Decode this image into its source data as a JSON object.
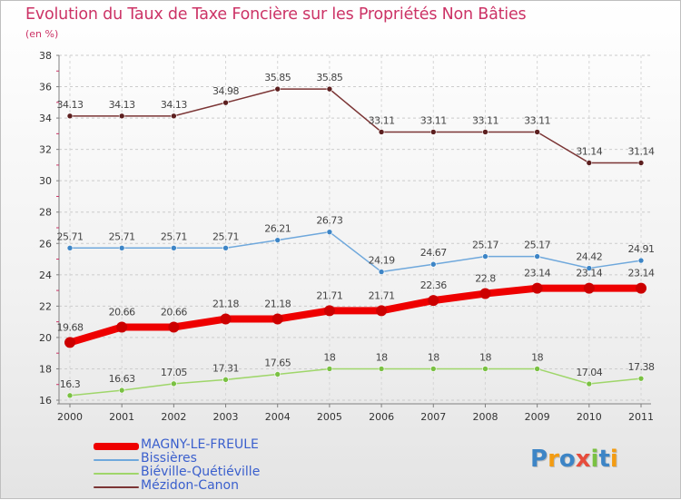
{
  "title": "Evolution du Taux de Taxe Foncière sur les Propriétés Non Bâties",
  "subtitle": "(en %)",
  "logo_text": "Proxiti",
  "chart_data": {
    "type": "line",
    "title": "Evolution du Taux de Taxe Foncière sur les Propriétés Non Bâties",
    "ylabel": "(en %)",
    "xlabel": "",
    "ylim": [
      16,
      38
    ],
    "yticks": [
      16,
      18,
      20,
      22,
      24,
      26,
      28,
      30,
      32,
      34,
      36,
      38
    ],
    "grid": true,
    "legend_position": "bottom-left",
    "x": [
      "2000",
      "2001",
      "2002",
      "2003",
      "2004",
      "2005",
      "2006",
      "2007",
      "2008",
      "2009",
      "2010",
      "2011"
    ],
    "series": [
      {
        "name": "MAGNY-LE-FREULE",
        "color": "#ee0000",
        "point_color": "#cc0000",
        "width": 8,
        "values": [
          19.68,
          20.66,
          20.66,
          21.18,
          21.18,
          21.71,
          21.71,
          22.36,
          22.8,
          23.14,
          23.14,
          23.14
        ],
        "labels": [
          "19.68",
          "20.66",
          "20.66",
          "21.18",
          "21.18",
          "21.71",
          "21.71",
          "22.36",
          "22.8",
          "23.14",
          "23.14",
          "23.14"
        ]
      },
      {
        "name": "Bissières",
        "color": "#6fa8dc",
        "point_color": "#3d85c6",
        "width": 1.5,
        "values": [
          25.71,
          25.71,
          25.71,
          25.71,
          26.21,
          26.73,
          24.19,
          24.67,
          25.17,
          25.17,
          24.42,
          24.91
        ],
        "labels": [
          "25.71",
          "25.71",
          "25.71",
          "25.71",
          "26.21",
          "26.73",
          "24.19",
          "24.67",
          "25.17",
          "25.17",
          "24.42",
          "24.91"
        ]
      },
      {
        "name": "Biéville-Quétiéville",
        "color": "#9fd66a",
        "point_color": "#7ac143",
        "width": 1.5,
        "values": [
          16.3,
          16.63,
          17.05,
          17.31,
          17.65,
          18,
          18,
          18,
          18,
          18,
          17.04,
          17.38
        ],
        "labels": [
          "16.3",
          "16.63",
          "17.05",
          "17.31",
          "17.65",
          "18",
          "18",
          "18",
          "18",
          "18",
          "17.04",
          "17.38"
        ]
      },
      {
        "name": "Mézidon-Canon",
        "color": "#7b3535",
        "point_color": "#5c1f1f",
        "width": 1.5,
        "values": [
          34.13,
          34.13,
          34.13,
          34.98,
          35.85,
          35.85,
          33.11,
          33.11,
          33.11,
          33.11,
          31.14,
          31.14
        ],
        "labels": [
          "34.13",
          "34.13",
          "34.13",
          "34.98",
          "35.85",
          "35.85",
          "33.11",
          "33.11",
          "33.11",
          "33.11",
          "31.14",
          "31.14"
        ]
      }
    ],
    "legend_order": [
      "MAGNY-LE-FREULE",
      "Bissières",
      "Biéville-Quétiéville",
      "Mézidon-Canon"
    ]
  }
}
